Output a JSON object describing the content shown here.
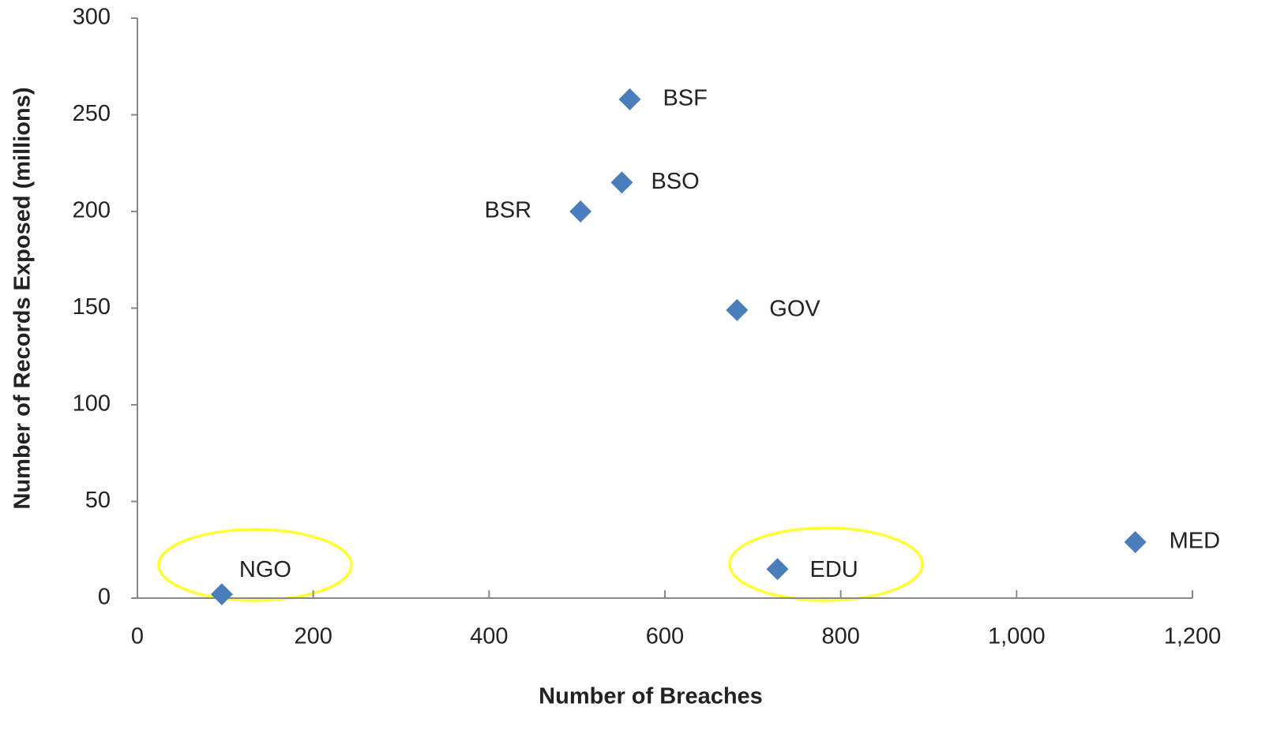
{
  "chart_data": {
    "type": "scatter",
    "x_label": "Number of Breaches",
    "y_label": "Number of Records Exposed (millions)",
    "labels": [
      "NGO",
      "BSR",
      "BSO",
      "BSF",
      "GOV",
      "EDU",
      "MED"
    ],
    "x": [
      96,
      504,
      551,
      560,
      682,
      728,
      1135
    ],
    "values": [
      2,
      200,
      215,
      258,
      149,
      15,
      29
    ],
    "color": "#4a7ebb",
    "xlim": [
      0,
      1200
    ],
    "xticks": [
      0,
      200,
      400,
      600,
      800,
      {
        "value": 1000,
        "label": "1,000"
      },
      {
        "value": 1200,
        "label": "1,200"
      }
    ],
    "ylim": [
      0,
      300
    ],
    "yticks": [
      0,
      50,
      100,
      150,
      200,
      250,
      300
    ],
    "grid": false
  }
}
